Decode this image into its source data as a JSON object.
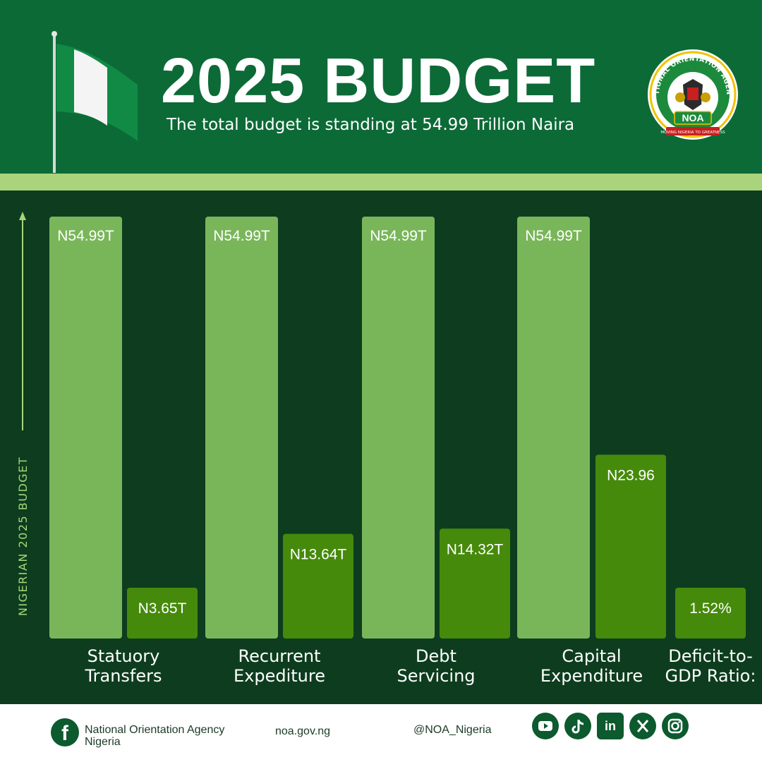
{
  "header": {
    "title": "2025 BUDGET",
    "subtitle": "The total budget is standing at 54.99 Trillion Naira",
    "logo": {
      "ring_text": "NATIONAL ORIENTATION AGENCY",
      "acronym": "NOA",
      "motto": "MOVING NIGERIA TO GREATNESS"
    }
  },
  "colors": {
    "header_bg": "#0c6a37",
    "stripe": "#a9d47b",
    "chart_bg": "#0d3d1e",
    "total_bar": "#79b65a",
    "component_bar": "#468a0c"
  },
  "chart_data": {
    "type": "bar",
    "ylabel": "NIGERIAN 2025 BUDGET",
    "total_value": 54.99,
    "total_label": "N54.99T",
    "categories": [
      {
        "label_lines": [
          "Statuory",
          "Transfers"
        ],
        "total": 54.99,
        "total_label": "N54.99T",
        "value": 3.65,
        "value_label": "N3.65T"
      },
      {
        "label_lines": [
          "Recurrent",
          "Expediture"
        ],
        "total": 54.99,
        "total_label": "N54.99T",
        "value": 13.64,
        "value_label": "N13.64T"
      },
      {
        "label_lines": [
          "Debt",
          "Servicing"
        ],
        "total": 54.99,
        "total_label": "N54.99T",
        "value": 14.32,
        "value_label": "N14.32T"
      },
      {
        "label_lines": [
          "Capital",
          "Expenditure"
        ],
        "total": 54.99,
        "total_label": "N54.99T",
        "value": 23.96,
        "value_label": "N23.96"
      },
      {
        "label_lines": [
          "Deficit-to-",
          "GDP Ratio:"
        ],
        "total": null,
        "total_label": null,
        "value": 1.52,
        "value_label": "1.52%"
      }
    ]
  },
  "footer": {
    "facebook_name": "National Orientation Agency\nNigeria",
    "website": "noa.gov.ng",
    "handle": "@NOA_Nigeria",
    "social_icons": [
      "youtube-icon",
      "tiktok-icon",
      "linkedin-icon",
      "x-icon",
      "instagram-icon"
    ]
  }
}
